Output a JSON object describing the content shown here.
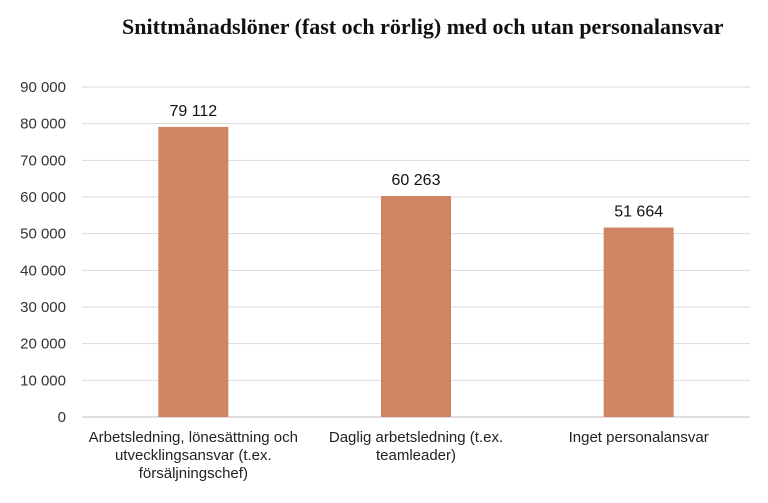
{
  "colors": {
    "bar": "#d18464",
    "grid": "#d9d9d9",
    "axis": "#bfbfbf"
  },
  "chart_data": {
    "type": "bar",
    "title": "Snittmånadslöner (fast och rörlig) med och utan personalansvar",
    "categories": [
      "Arbetsledning, lönesättning och utvecklingsansvar (t.ex. försäljningschef)",
      "Daglig arbetsledning (t.ex. teamleader)",
      "Inget personalansvar"
    ],
    "values": [
      79112,
      60263,
      51664
    ],
    "value_labels": [
      "79 112",
      "60 263",
      "51 664"
    ],
    "ylim": [
      0,
      90000
    ],
    "yticks": [
      0,
      10000,
      20000,
      30000,
      40000,
      50000,
      60000,
      70000,
      80000,
      90000
    ],
    "ytick_labels": [
      "0",
      "10 000",
      "20 000",
      "30 000",
      "40 000",
      "50 000",
      "60 000",
      "70 000",
      "80 000",
      "90 000"
    ],
    "grid": true,
    "legend": "none"
  }
}
